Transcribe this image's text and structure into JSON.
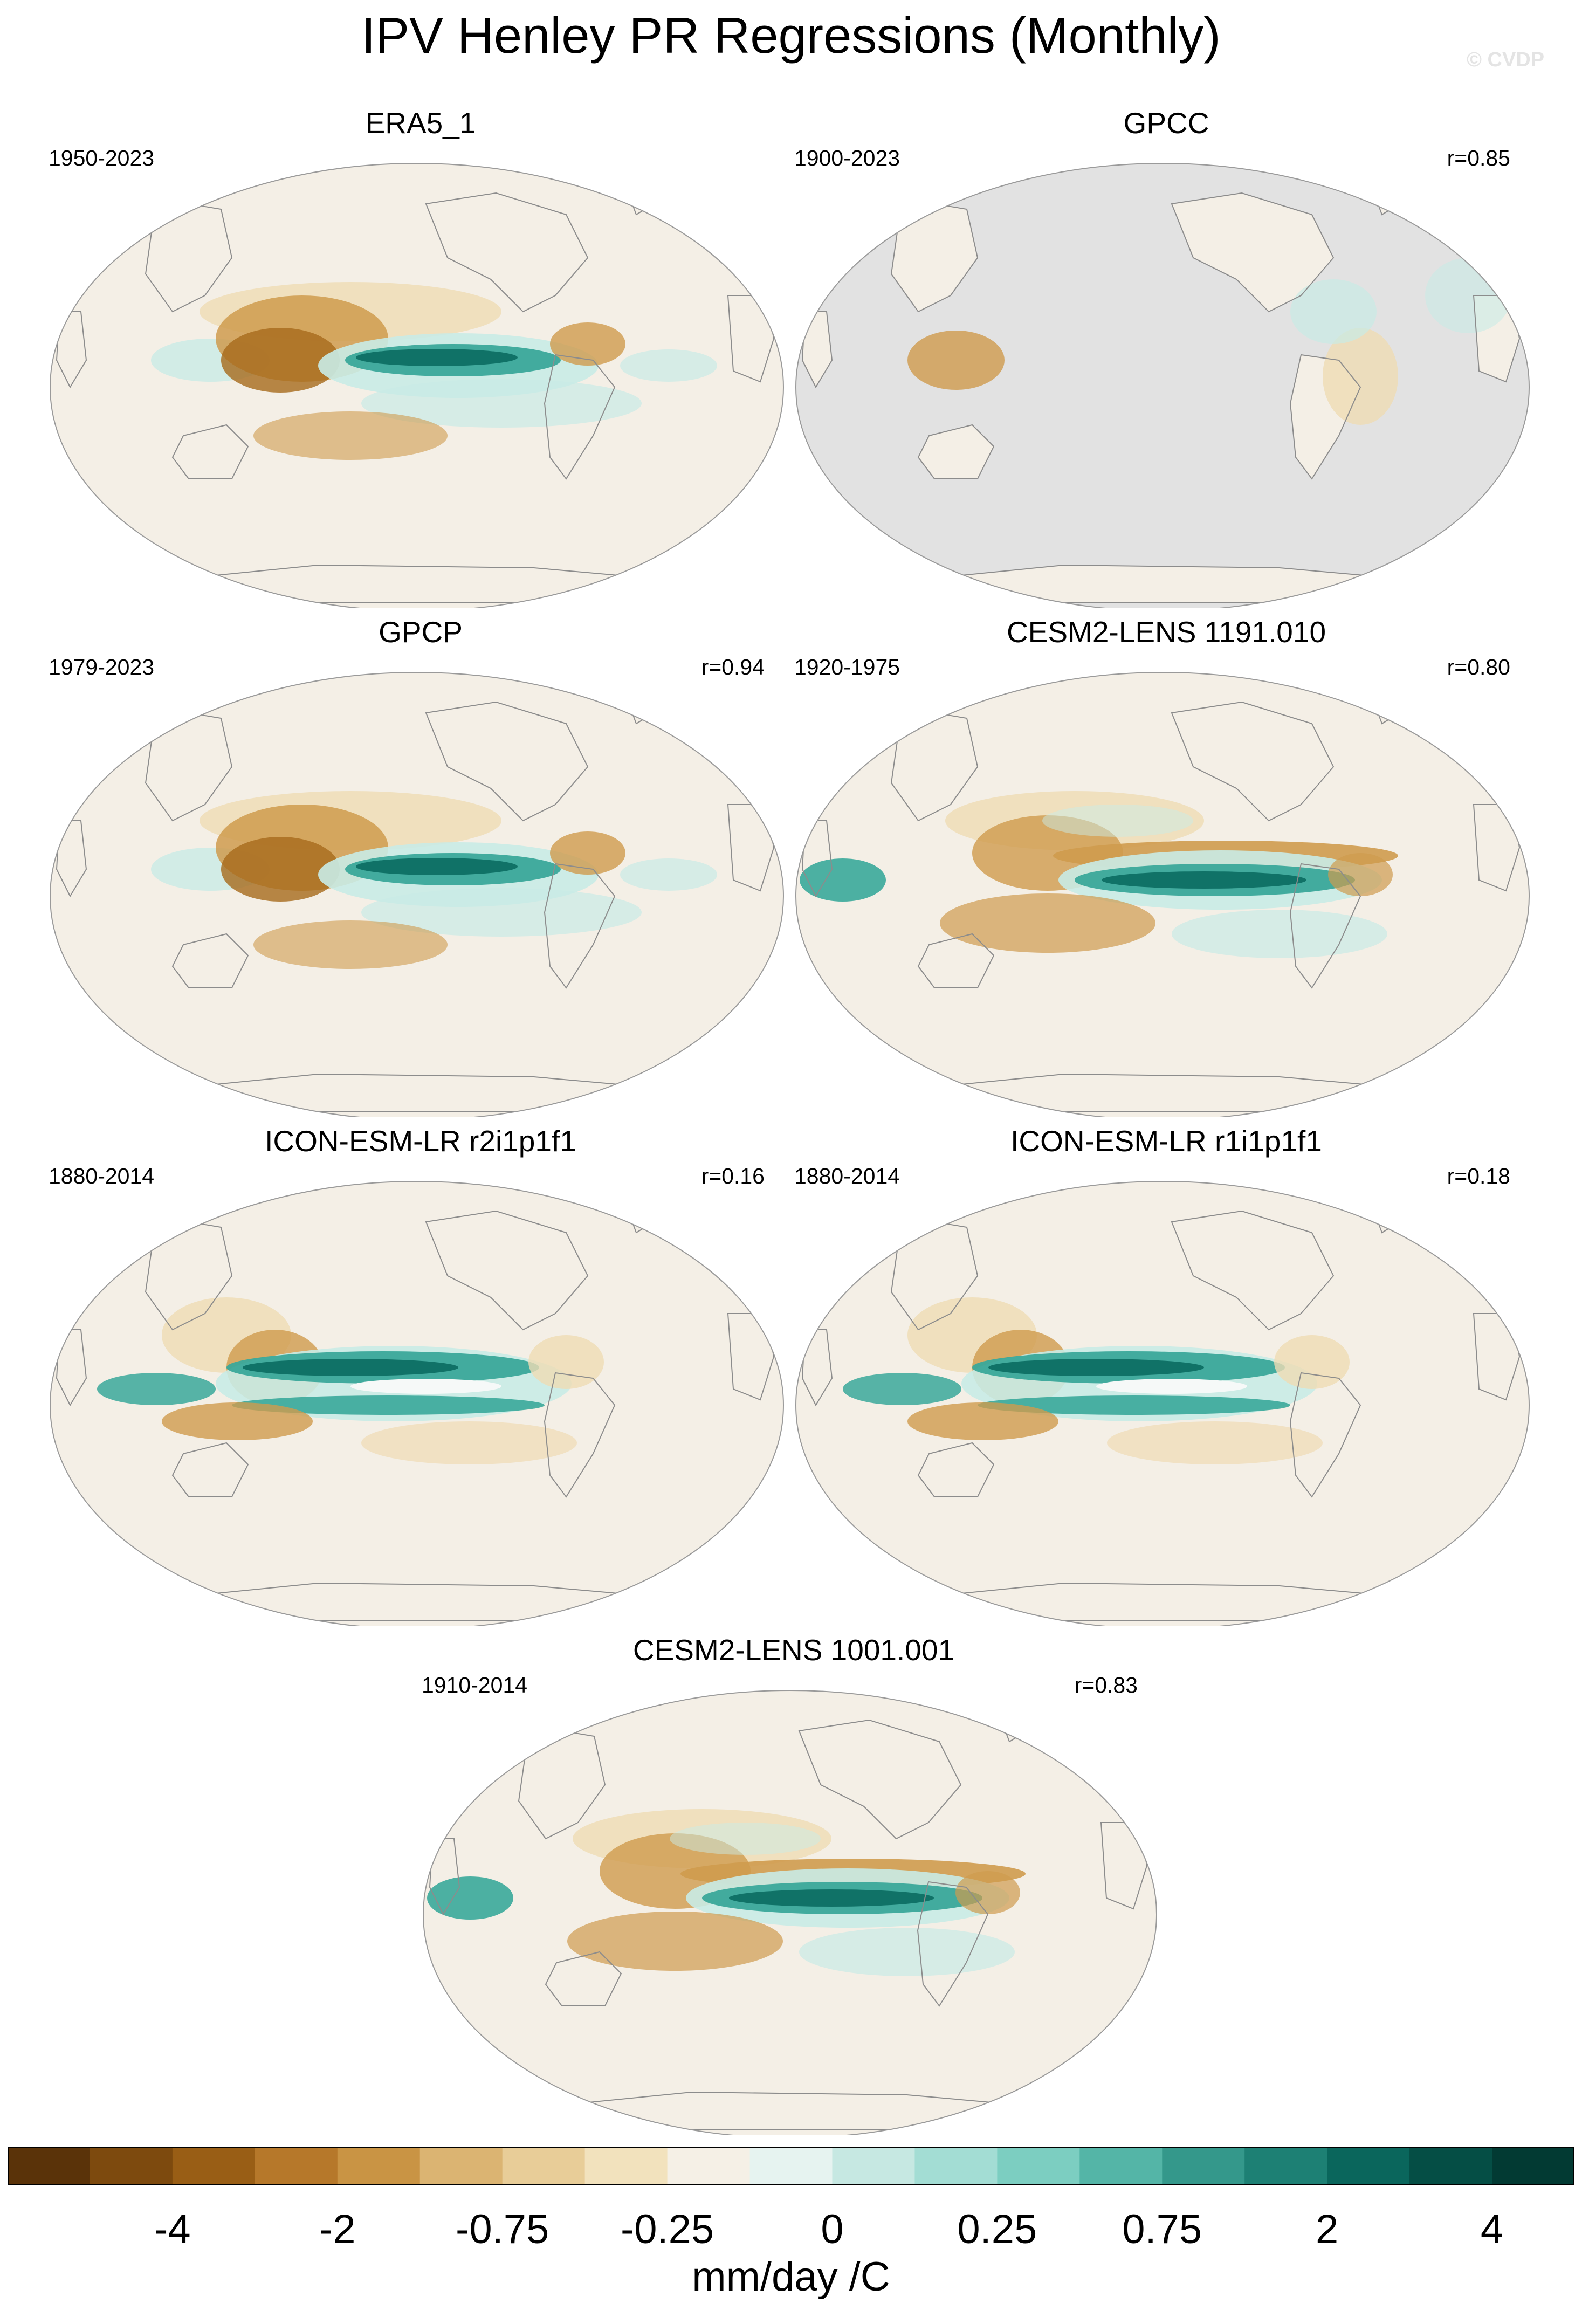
{
  "title": "IPV Henley PR Regressions (Monthly)",
  "watermark": "© CVDP",
  "colors": {
    "land": "#f4efe6",
    "missing": "#e2e2e2",
    "coast": "#8c8c8c",
    "wet_deep": "#0e6f64",
    "wet_mid": "#3aa89a",
    "wet_light": "#c9ebe6",
    "dry_deep": "#a66a1c",
    "dry_mid": "#cf9b4e",
    "dry_light": "#efdcb4"
  },
  "panels": [
    {
      "id": "era5",
      "title": "ERA5_1",
      "period": "1950-2023",
      "corr": "",
      "pattern": "obs"
    },
    {
      "id": "gpcc",
      "title": "GPCC",
      "period": "1900-2023",
      "corr": "r=0.85",
      "pattern": "land-only"
    },
    {
      "id": "gpcp",
      "title": "GPCP",
      "period": "1979-2023",
      "corr": "r=0.94",
      "pattern": "obs"
    },
    {
      "id": "cesm-1191",
      "title": "CESM2-LENS 1191.010",
      "period": "1920-1975",
      "corr": "r=0.80",
      "pattern": "cesm"
    },
    {
      "id": "icon-r2",
      "title": "ICON-ESM-LR r2i1p1f1",
      "period": "1880-2014",
      "corr": "r=0.16",
      "pattern": "icon"
    },
    {
      "id": "icon-r1",
      "title": "ICON-ESM-LR r1i1p1f1",
      "period": "1880-2014",
      "corr": "r=0.18",
      "pattern": "icon"
    },
    {
      "id": "cesm-1001",
      "title": "CESM2-LENS 1001.001",
      "period": "1910-2014",
      "corr": "r=0.83",
      "pattern": "cesm"
    }
  ],
  "colorbar": {
    "units": "mm/day /C",
    "labels": [
      "-4",
      "-2",
      "-0.75",
      "-0.25",
      "0",
      "0.25",
      "0.75",
      "2",
      "4"
    ],
    "colors": [
      "#5a3309",
      "#7d4a0e",
      "#995e15",
      "#b6782a",
      "#c99444",
      "#dbb472",
      "#e8cd98",
      "#f2e2bd",
      "#f5f0e6",
      "#e6f3f0",
      "#c6e8e2",
      "#a3ddd4",
      "#7ccec1",
      "#54b5a7",
      "#34988b",
      "#1d8074",
      "#0a665c",
      "#054e45",
      "#023a33"
    ]
  }
}
